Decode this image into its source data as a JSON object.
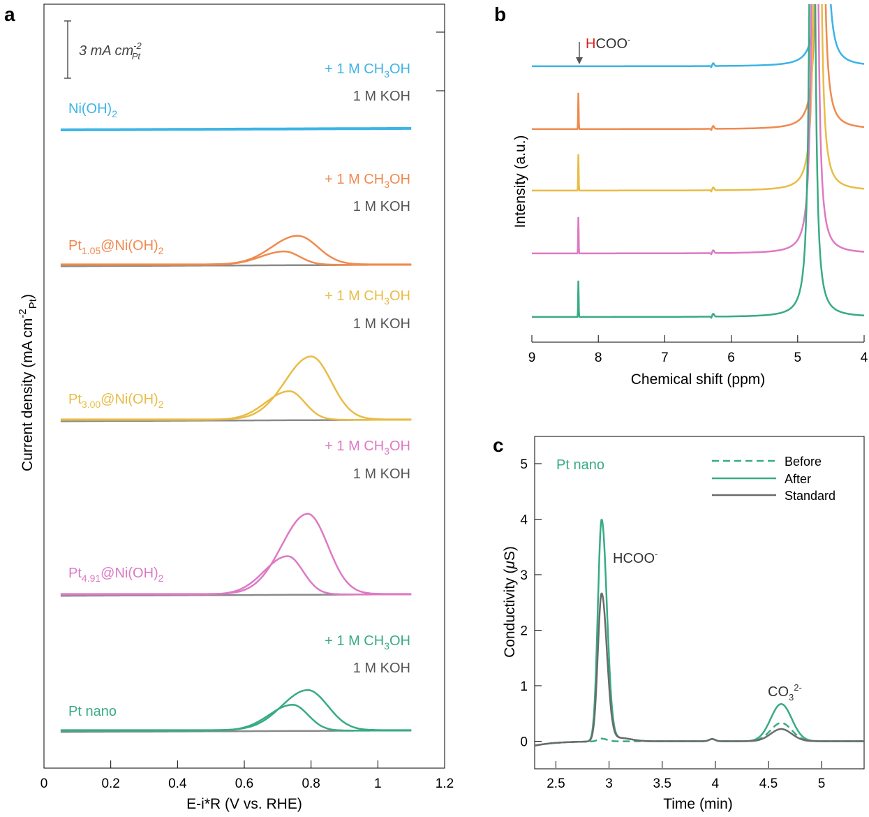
{
  "colors": {
    "nioh": "#3cb4e5",
    "pt105": "#ef8a4f",
    "pt300": "#e9bc46",
    "pt491": "#de79c4",
    "ptnano": "#38ab84",
    "grey": "#6b6b6b",
    "red": "#e01e1e"
  },
  "panel_a": {
    "label": "a",
    "xlabel": "E-i*R (V vs. RHE)",
    "ylabel_main": "Current density (mA cm",
    "ylabel_sup": "-2",
    "ylabel_sub": "Pt",
    "ylabel_close": ")",
    "scalebar_main": "3 mA cm",
    "scalebar_sup": "-2",
    "scalebar_sub": "Pt",
    "xticks": [
      "0",
      "0.2",
      "0.4",
      "0.6",
      "0.8",
      "1",
      "1.2"
    ],
    "methanol_pre": "+ 1 M CH",
    "methanol_sub": "3",
    "methanol_post": "OH",
    "koh_label": "1 M KOH",
    "samples": [
      {
        "name_main": "Ni(OH)",
        "name_sub": "2",
        "name_post": ""
      },
      {
        "name_main": "Pt",
        "name_sub": "1.05",
        "name_post": "@Ni(OH)",
        "name_sub2": "2"
      },
      {
        "name_main": "Pt",
        "name_sub": "3.00",
        "name_post": "@Ni(OH)",
        "name_sub2": "2"
      },
      {
        "name_main": "Pt",
        "name_sub": "4.91",
        "name_post": "@Ni(OH)",
        "name_sub2": "2"
      },
      {
        "name_main": "Pt nano",
        "name_sub": "",
        "name_post": ""
      }
    ]
  },
  "panel_b": {
    "label": "b",
    "xlabel": "Chemical shift (ppm)",
    "ylabel": "Intensity (a.u.)",
    "xticks": [
      "9",
      "8",
      "7",
      "6",
      "5",
      "4"
    ],
    "annot_h": "H",
    "annot_rest": "COO",
    "annot_sup": "-"
  },
  "panel_c": {
    "label": "c",
    "xlabel": "Time (min)",
    "ylabel_main": "Conductivity (",
    "ylabel_mu": "μ",
    "ylabel_post": "S)",
    "xticks": [
      "2.5",
      "3",
      "3.5",
      "4",
      "4.5",
      "5"
    ],
    "yticks": [
      "0",
      "1",
      "2",
      "3",
      "4",
      "5"
    ],
    "sample_label": "Pt nano",
    "legend": [
      "Before",
      "After",
      "Standard"
    ],
    "peak1_main": "HCOO",
    "peak1_sup": "-",
    "peak2_main": "CO",
    "peak2_sub": "3",
    "peak2_sup": "2-"
  },
  "chart_data": [
    {
      "type": "line",
      "panel": "a",
      "xlabel": "E-i*R (V vs. RHE)",
      "ylabel": "Current density (mA cm-2 Pt)",
      "xlim": [
        0,
        1.2
      ],
      "scalebar": "3 mA cm-2 Pt",
      "series": [
        {
          "sample": "Ni(OH)2",
          "x_range": [
            0.05,
            1.1
          ],
          "with_methanol_peak": null,
          "shoulder": null
        },
        {
          "sample": "Pt1.05@Ni(OH)2",
          "x_range": [
            0.05,
            1.1
          ],
          "with_methanol_peak": {
            "x": 0.76,
            "height": 1.5
          },
          "shoulder": {
            "x": 0.72,
            "height": 0.7
          }
        },
        {
          "sample": "Pt3.00@Ni(OH)2",
          "x_range": [
            0.05,
            1.1
          ],
          "with_methanol_peak": {
            "x": 0.8,
            "height": 3.3
          },
          "shoulder": {
            "x": 0.735,
            "height": 1.5
          }
        },
        {
          "sample": "Pt4.91@Ni(OH)2",
          "x_range": [
            0.05,
            1.1
          ],
          "with_methanol_peak": {
            "x": 0.79,
            "height": 4.2
          },
          "shoulder": {
            "x": 0.73,
            "height": 2.0
          }
        },
        {
          "sample": "Pt nano",
          "x_range": [
            0.05,
            1.1
          ],
          "with_methanol_peak": {
            "x": 0.79,
            "height": 2.1
          },
          "shoulder": {
            "x": 0.745,
            "height": 1.35
          }
        }
      ]
    },
    {
      "type": "line",
      "panel": "b",
      "xlabel": "Chemical shift (ppm)",
      "ylabel": "Intensity (a.u.)",
      "xlim": [
        9,
        4
      ],
      "water_peak_ppm": 4.7,
      "formate_peak_ppm": 8.3,
      "series": [
        {
          "color": "nioh",
          "formate_peak": false
        },
        {
          "color": "pt105",
          "formate_peak": true
        },
        {
          "color": "pt300",
          "formate_peak": true
        },
        {
          "color": "pt491",
          "formate_peak": true
        },
        {
          "color": "ptnano",
          "formate_peak": true
        }
      ]
    },
    {
      "type": "line",
      "panel": "c",
      "xlabel": "Time (min)",
      "ylabel": "Conductivity (μS)",
      "xlim": [
        2.3,
        5.4
      ],
      "ylim": [
        -0.5,
        5.5
      ],
      "series": [
        {
          "name": "Before",
          "style": "dashed",
          "peaks": [
            {
              "x": 2.93,
              "y": 0.05
            },
            {
              "x": 4.62,
              "y": 0.33
            }
          ]
        },
        {
          "name": "After",
          "style": "solid",
          "peaks": [
            {
              "x": 2.93,
              "y": 3.98
            },
            {
              "x": 4.62,
              "y": 0.67
            }
          ]
        },
        {
          "name": "Standard",
          "style": "solid",
          "peaks": [
            {
              "x": 2.93,
              "y": 2.65
            },
            {
              "x": 4.62,
              "y": 0.22
            }
          ]
        }
      ]
    }
  ]
}
